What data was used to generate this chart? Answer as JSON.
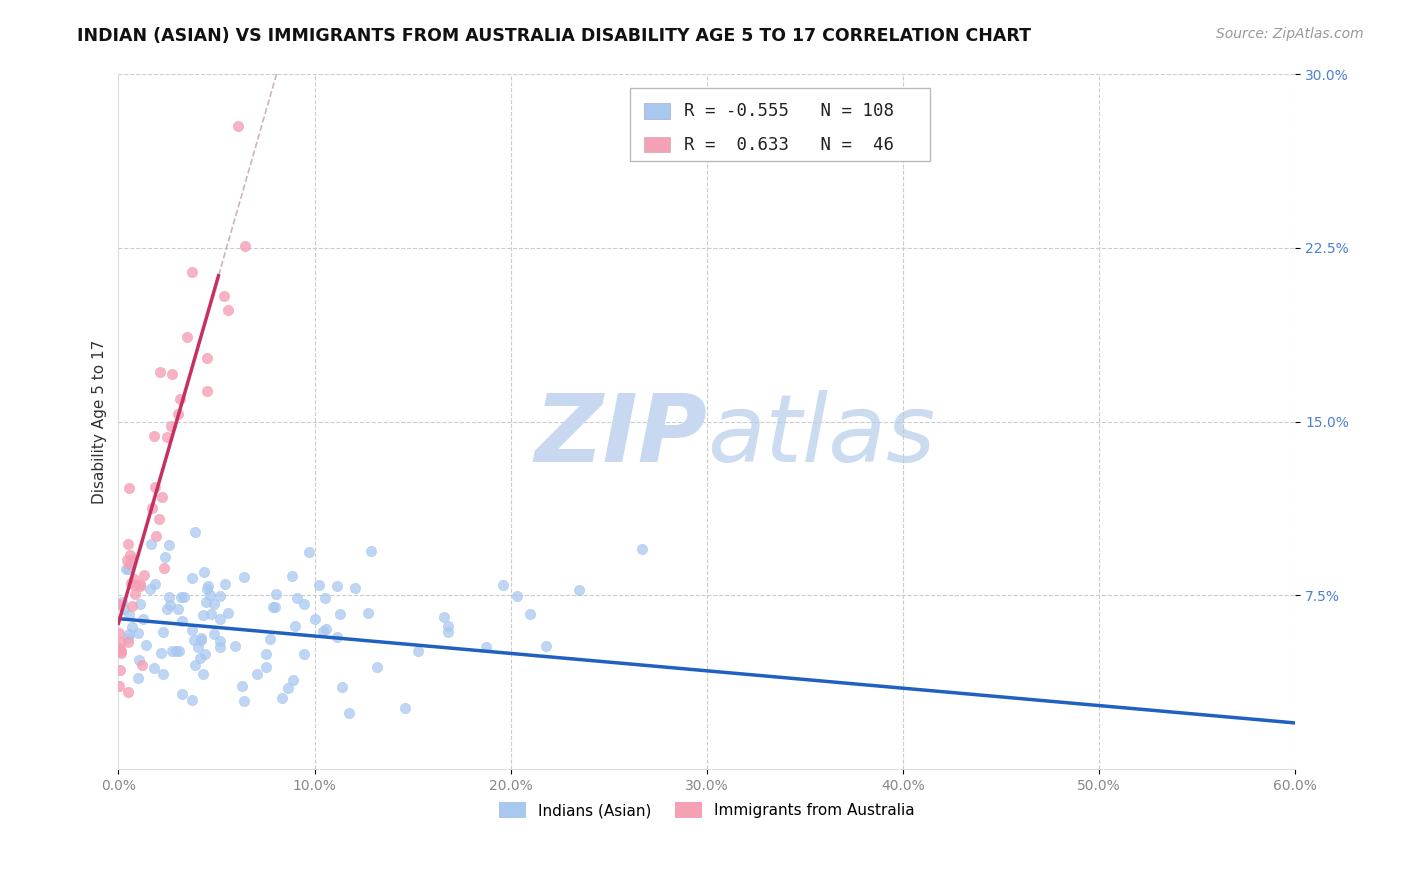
{
  "title": "INDIAN (ASIAN) VS IMMIGRANTS FROM AUSTRALIA DISABILITY AGE 5 TO 17 CORRELATION CHART",
  "source": "Source: ZipAtlas.com",
  "ylabel": "Disability Age 5 to 17",
  "xlim": [
    0.0,
    0.6
  ],
  "ylim": [
    0.0,
    0.3
  ],
  "blue_R": -0.555,
  "blue_N": 108,
  "pink_R": 0.633,
  "pink_N": 46,
  "blue_color": "#a8c8f0",
  "pink_color": "#f4a0b5",
  "blue_line_color": "#2060c0",
  "pink_line_color": "#c83060",
  "watermark_zip_color": "#c8d8f0",
  "watermark_atlas_color": "#b0c8e8",
  "background_color": "#ffffff",
  "legend_label_blue": "Indians (Asian)",
  "legend_label_pink": "Immigrants from Australia",
  "ytick_color": "#4a7fd4",
  "xtick_color": "#888888",
  "grid_color": "#cccccc"
}
